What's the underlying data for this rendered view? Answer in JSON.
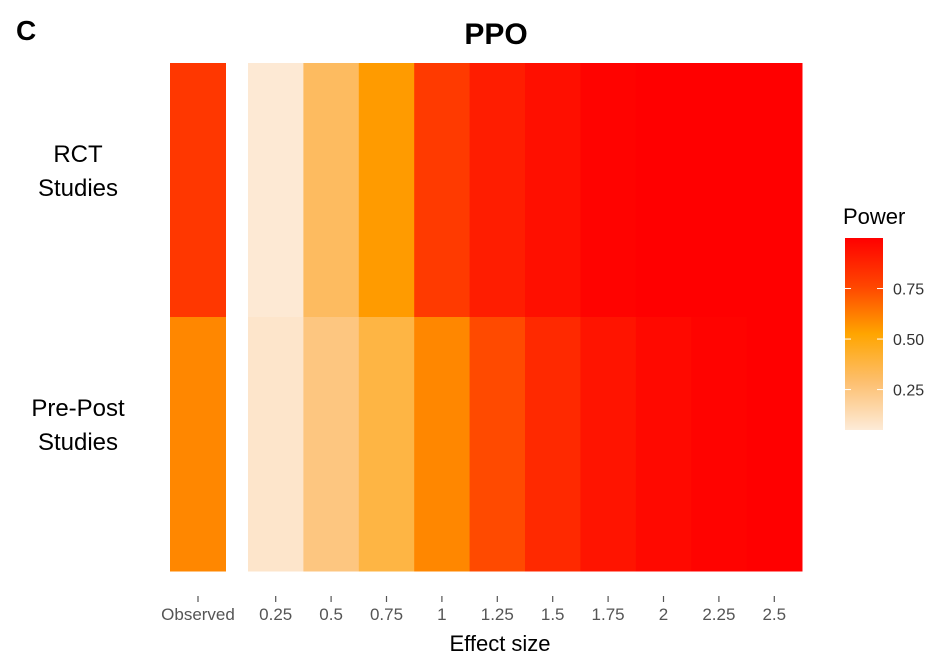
{
  "panel_label": "C",
  "chart_data": {
    "type": "heatmap",
    "title": "PPO",
    "xlabel": "Effect size",
    "ylabel": "",
    "columns": [
      "Observed",
      "0.25",
      "0.5",
      "0.75",
      "1",
      "1.25",
      "1.5",
      "1.75",
      "2",
      "2.25",
      "2.5"
    ],
    "rows": [
      {
        "label_line1": "RCT",
        "label_line2": "Studies",
        "values": [
          0.81,
          0.06,
          0.32,
          0.55,
          0.8,
          0.9,
          0.95,
          0.99,
          1.0,
          1.0,
          1.0
        ]
      },
      {
        "label_line1": "Pre-Post",
        "label_line2": "Studies",
        "values": [
          0.6,
          0.08,
          0.25,
          0.38,
          0.6,
          0.75,
          0.86,
          0.93,
          0.97,
          0.99,
          1.0
        ]
      }
    ],
    "legend": {
      "title": "Power",
      "ticks": [
        "0.75",
        "0.50",
        "0.25"
      ],
      "tick_values": [
        0.75,
        0.5,
        0.25
      ],
      "range": [
        0.05,
        1.0
      ],
      "placement": "right"
    },
    "colorscale": [
      "#fdebd8",
      "#fdbf6f",
      "#ffa500",
      "#ff4500",
      "#ff0000"
    ]
  }
}
